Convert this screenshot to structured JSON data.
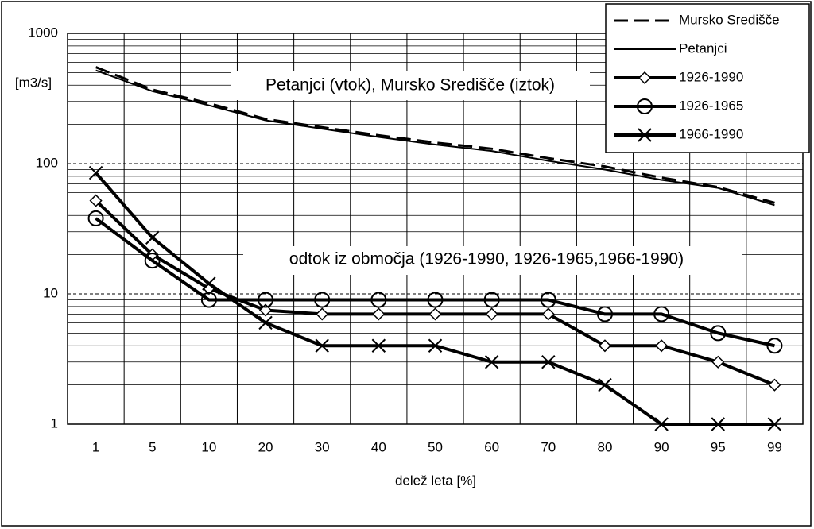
{
  "chart_data": {
    "type": "line",
    "annotations": [
      "Petanjci (vtok), Mursko Središče (iztok)",
      "odtok iz območja (1926-1990, 1926-1965,1966-1990)"
    ],
    "ylabel": "[m3/s]",
    "xlabel": "delež leta [%]",
    "categories": [
      "1",
      "5",
      "10",
      "20",
      "30",
      "40",
      "50",
      "60",
      "70",
      "80",
      "90",
      "95",
      "99"
    ],
    "ylim": [
      1,
      1000
    ],
    "yticks": [
      1,
      10,
      100,
      1000
    ],
    "log_scale": true,
    "grid": true,
    "legend": "top-right",
    "series": [
      {
        "name": "Mursko Središče",
        "color": "#000000",
        "dash": true,
        "marker": "none",
        "width": 3,
        "values": [
          550,
          370,
          290,
          220,
          190,
          165,
          145,
          130,
          110,
          95,
          78,
          66,
          50
        ]
      },
      {
        "name": "Petanjci",
        "color": "#000000",
        "dash": false,
        "marker": "none",
        "width": 2,
        "values": [
          520,
          360,
          280,
          215,
          185,
          160,
          140,
          125,
          105,
          90,
          75,
          65,
          48
        ]
      },
      {
        "name": "1926-1990",
        "color": "#000000",
        "dash": false,
        "marker": "diamond",
        "width": 4,
        "values": [
          52,
          20,
          11,
          7.5,
          7,
          7,
          7,
          7,
          7,
          4,
          4,
          3,
          2
        ]
      },
      {
        "name": "1926-1965",
        "color": "#000000",
        "dash": false,
        "marker": "circle",
        "width": 4,
        "values": [
          38,
          18,
          9,
          9,
          9,
          9,
          9,
          9,
          9,
          7,
          7,
          5,
          4
        ]
      },
      {
        "name": "1966-1990",
        "color": "#000000",
        "dash": false,
        "marker": "x",
        "width": 4,
        "values": [
          85,
          27,
          12,
          6,
          4,
          4,
          4,
          3,
          3,
          2,
          1,
          1,
          1
        ]
      }
    ]
  }
}
